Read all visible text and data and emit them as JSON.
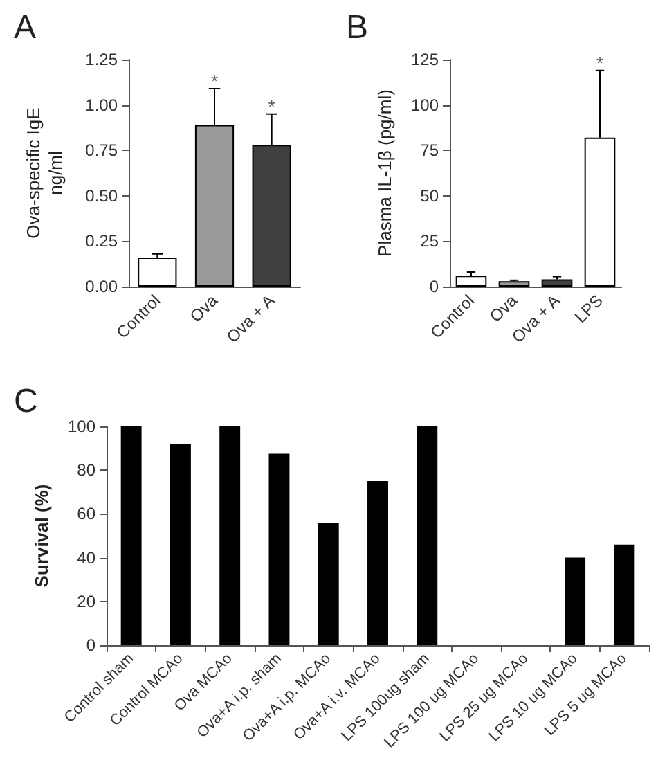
{
  "chart_data": [
    {
      "type": "bar",
      "title": "A",
      "ylabel": "Ova-specific IgE\nng/ml",
      "categories": [
        "Control",
        "Ova",
        "Ova + A"
      ],
      "values": [
        0.16,
        0.89,
        0.78
      ],
      "colors": [
        "#ffffff",
        "#999999",
        "#404040"
      ],
      "errors": [
        [
          0.16,
          0.18
        ],
        [
          0.89,
          1.09
        ],
        [
          0.78,
          0.95
        ]
      ],
      "ylim": [
        0,
        1.25
      ],
      "yticks": [
        {
          "value": 0,
          "label": "0.00"
        },
        0.25,
        {
          "value": 0.5,
          "label": "0.50"
        },
        0.75,
        {
          "value": 1,
          "label": "1.00"
        },
        1.25
      ],
      "grid": false,
      "annotations": [
        {
          "text": "*",
          "x": "Ova",
          "y": 1.13
        },
        {
          "text": "*",
          "x": "Ova + A",
          "y": 0.99
        }
      ]
    },
    {
      "type": "bar",
      "title": "B",
      "ylabel": "Plasma IL-1β (pg/ml)",
      "categories": [
        "Control",
        "Ova",
        "Ova + A",
        "LPS"
      ],
      "values": [
        6,
        3,
        4,
        82
      ],
      "colors": [
        "#ffffff",
        "#999999",
        "#404040",
        "#ffffff"
      ],
      "errors": [
        [
          6,
          8
        ],
        [
          3,
          3.5
        ],
        [
          4,
          5.5
        ],
        [
          82,
          119
        ]
      ],
      "ylim": [
        0,
        125
      ],
      "yticks": [
        0,
        25,
        50,
        75,
        100,
        125
      ],
      "grid": false,
      "annotations": [
        {
          "text": "*",
          "x": "LPS",
          "y": 123
        }
      ]
    },
    {
      "type": "bar",
      "title": "C",
      "ylabel": "Survival (%)",
      "categories": [
        "Control sham",
        "Control MCAo",
        "Ova MCAo",
        "Ova+A i.p. sham",
        "Ova+A i.p. MCAo",
        "Ova+A i.v. MCAo",
        "LPS 100ug sham",
        "LPS 100 ug MCAo",
        "LPS 25 ug MCAo",
        "LPS 10 ug MCAo",
        "LPS 5 ug MCAo"
      ],
      "values": [
        100,
        92,
        100,
        87.5,
        56,
        75,
        100,
        0,
        0,
        40,
        46
      ],
      "color": "#000000",
      "ylim": [
        0,
        100
      ],
      "yticks": [
        0,
        20,
        40,
        60,
        80,
        100
      ],
      "grid": false
    }
  ]
}
